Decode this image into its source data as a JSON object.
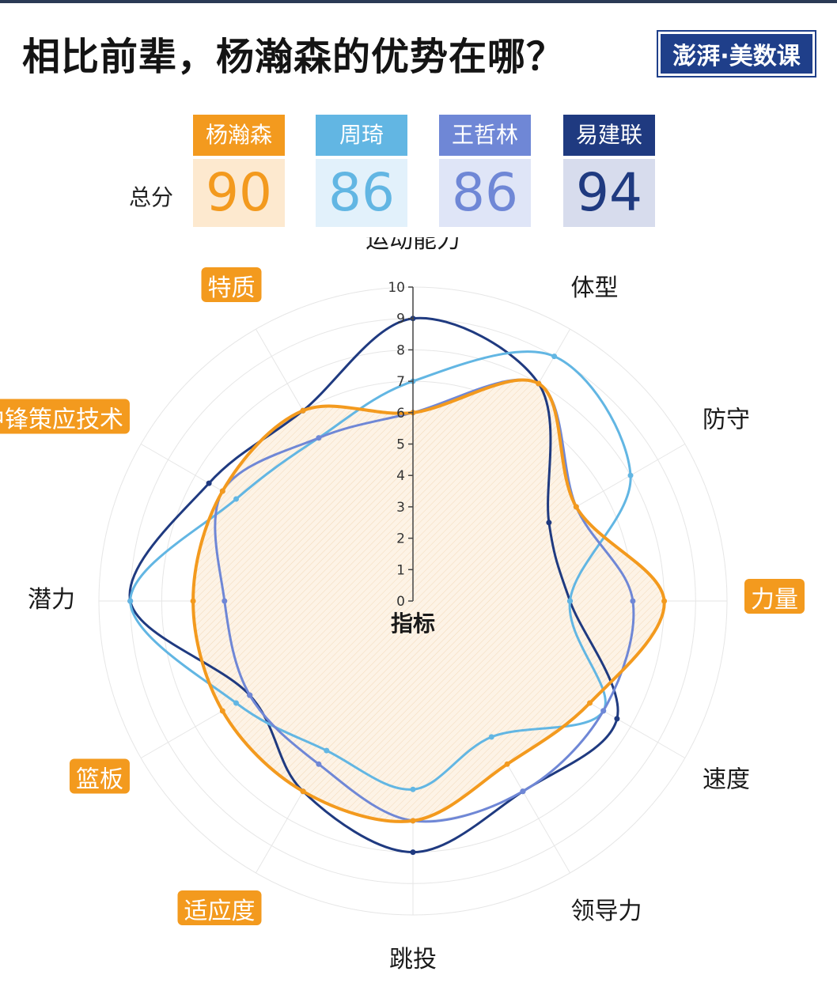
{
  "title": "相比前辈，杨瀚森的优势在哪？",
  "logo": "澎湃·美数课",
  "total_label": "总分",
  "players": [
    {
      "name": "杨瀚森",
      "score": "90",
      "color": "#f39a1e",
      "bg": "#fde9cf"
    },
    {
      "name": "周琦",
      "score": "86",
      "color": "#62b6e3",
      "bg": "#e2f1fb"
    },
    {
      "name": "王哲林",
      "score": "86",
      "color": "#6f87d6",
      "bg": "#dfe5f7"
    },
    {
      "name": "易建联",
      "score": "94",
      "color": "#1f3a80",
      "bg": "#d7dced"
    }
  ],
  "chart_data": {
    "type": "radar",
    "center_label": "指标",
    "rlim": [
      0,
      10
    ],
    "ticks": [
      "0",
      "1",
      "2",
      "3",
      "4",
      "5",
      "6",
      "7",
      "8",
      "9",
      "10"
    ],
    "categories": [
      "运动能力",
      "体型",
      "防守",
      "力量",
      "速度",
      "领导力",
      "跳投",
      "适应度",
      "篮板",
      "潜力",
      "中锋策应技术",
      "特质"
    ],
    "highlighted": [
      "力量",
      "适应度",
      "篮板",
      "中锋策应技术",
      "特质"
    ],
    "series": [
      {
        "name": "易建联",
        "color": "#1f3a80",
        "values": [
          9,
          8,
          5,
          5,
          7.5,
          7,
          8,
          7,
          6,
          9,
          7.5,
          7
        ]
      },
      {
        "name": "周琦",
        "color": "#62b6e3",
        "values": [
          7,
          9,
          8,
          5,
          7,
          5,
          6,
          5.5,
          6.5,
          9,
          6.5,
          6
        ]
      },
      {
        "name": "王哲林",
        "color": "#6f87d6",
        "values": [
          6,
          8,
          6,
          7,
          7,
          7,
          7,
          6,
          6,
          6,
          7,
          6
        ]
      },
      {
        "name": "杨瀚森",
        "color": "#f39a1e",
        "values": [
          6,
          8,
          6,
          8,
          6.5,
          6,
          7,
          7,
          7,
          7,
          7,
          7
        ]
      }
    ]
  }
}
